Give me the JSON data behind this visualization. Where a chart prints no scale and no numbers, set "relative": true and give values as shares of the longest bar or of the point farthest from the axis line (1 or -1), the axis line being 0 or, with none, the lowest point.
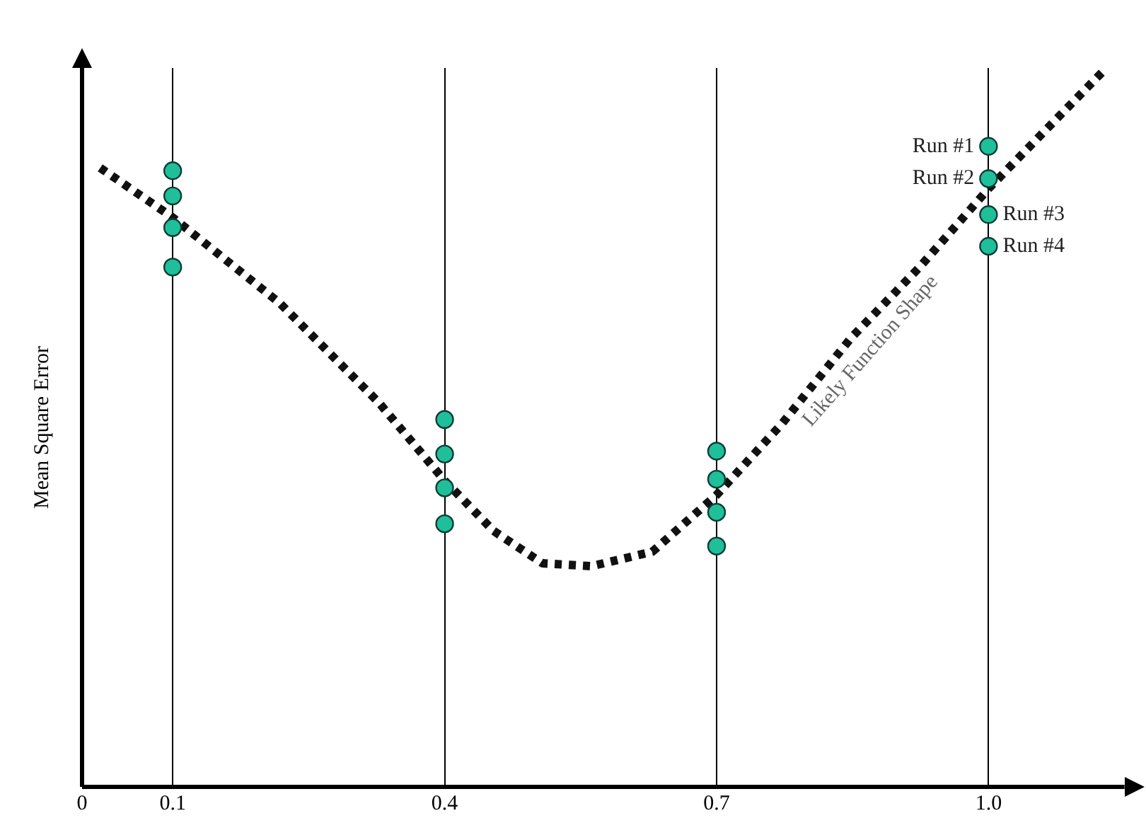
{
  "chart_data": {
    "type": "scatter",
    "ylabel": "Mean Square Error",
    "relative": true,
    "xlim": [
      0,
      1.15
    ],
    "xticks": [
      0,
      0.1,
      0.4,
      0.7,
      {
        "value": 1.0,
        "label": "1.0"
      }
    ],
    "grid": "x",
    "legend": false,
    "marker": "circle",
    "series": [
      {
        "name": "Run #1",
        "color": "#1fbf9a",
        "x": [
          0.1,
          0.4,
          0.7,
          1.0
        ],
        "values": [
          0.857,
          0.511,
          0.467,
          0.891
        ]
      },
      {
        "name": "Run #2",
        "color": "#1fbf9a",
        "x": [
          0.1,
          0.4,
          0.7,
          1.0
        ],
        "values": [
          0.822,
          0.463,
          0.428,
          0.846
        ]
      },
      {
        "name": "Run #3",
        "color": "#1fbf9a",
        "x": [
          0.1,
          0.4,
          0.7,
          1.0
        ],
        "values": [
          0.778,
          0.416,
          0.382,
          0.796
        ]
      },
      {
        "name": "Run #4",
        "color": "#1fbf9a",
        "x": [
          0.1,
          0.4,
          0.7,
          1.0
        ],
        "values": [
          0.723,
          0.366,
          0.335,
          0.752
        ]
      },
      {
        "name": "Likely Function Shape",
        "type": "line",
        "line_style": "dotted",
        "marker": "none",
        "color": "#111111",
        "x": [
          0.02,
          0.1,
          0.218,
          0.327,
          0.4,
          0.454,
          0.508,
          0.562,
          0.629,
          0.7,
          0.772,
          0.848,
          0.924,
          1.0,
          1.061,
          1.13
        ],
        "values": [
          0.861,
          0.792,
          0.673,
          0.535,
          0.426,
          0.356,
          0.311,
          0.307,
          0.327,
          0.406,
          0.505,
          0.624,
          0.723,
          0.832,
          0.911,
          1
        ]
      }
    ]
  }
}
